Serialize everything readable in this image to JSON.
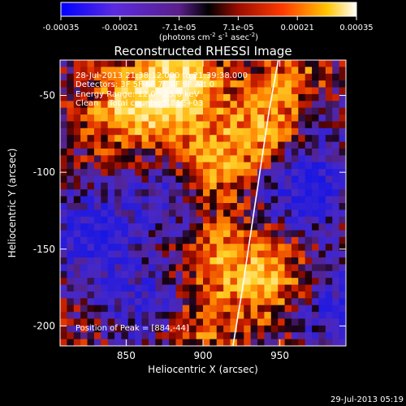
{
  "colorbar": {
    "tick_labels": [
      "-0.00035",
      "-0.00021",
      "-7.1e-05",
      "7.1e-05",
      "0.00021",
      "0.00035"
    ],
    "units_main": "(photons cm",
    "units_exp1": "-2",
    "units_mid": " s",
    "units_exp2": "-1",
    "units_tail": " asec",
    "units_exp3": "-2",
    "units_close": ")",
    "range": [
      -0.00035,
      0.00035
    ],
    "colormap": "blue-purple-red-yellow-white"
  },
  "chart_data": {
    "type": "heatmap",
    "title": "Reconstructed RHESSI Image",
    "xlabel": "Heliocentric X (arcsec)",
    "ylabel": "Heliocentric Y (arcsec)",
    "xlim": [
      807,
      993
    ],
    "ylim": [
      -213,
      -27
    ],
    "x_ticks": [
      850,
      900,
      950
    ],
    "y_ticks": [
      -50,
      -100,
      -150,
      -200
    ],
    "info_lines": [
      "28-Jul-2013 21:38:12.000 to 21:39:38.000",
      "Detectors: 3F 5F 6F 7F 8F 9F Att 0",
      "Energy Range: 12.0 - 25.0 keV",
      "Clean    Total counts: 5.81E+03"
    ],
    "peak_text": "Position of Peak = [884,-44]",
    "peak_position": [
      884,
      -44
    ],
    "limb_line": [
      [
        919.5,
        -213
      ],
      [
        925,
        -180
      ],
      [
        931,
        -140
      ],
      [
        937,
        -100
      ],
      [
        943,
        -60
      ],
      [
        949,
        -27
      ]
    ],
    "grid_size": 42,
    "hotspots": [
      {
        "x": 884,
        "y": -44,
        "amp": 1.6
      },
      {
        "x": 852,
        "y": -60,
        "amp": 1.1
      },
      {
        "x": 905,
        "y": -95,
        "amp": 1.0
      },
      {
        "x": 940,
        "y": -70,
        "amp": 0.9
      },
      {
        "x": 908,
        "y": -155,
        "amp": 0.8
      },
      {
        "x": 945,
        "y": -170,
        "amp": 1.0
      },
      {
        "x": 960,
        "y": -40,
        "amp": 0.7
      },
      {
        "x": 900,
        "y": -200,
        "amp": 0.6
      }
    ],
    "coldspots": [
      {
        "x": 830,
        "y": -140,
        "amp": 1.1
      },
      {
        "x": 968,
        "y": -110,
        "amp": 1.2
      },
      {
        "x": 880,
        "y": -115,
        "amp": 0.7
      },
      {
        "x": 865,
        "y": -185,
        "amp": 0.8
      },
      {
        "x": 985,
        "y": -185,
        "amp": 0.9
      },
      {
        "x": 975,
        "y": -60,
        "amp": 0.4
      }
    ]
  },
  "footer": {
    "timestamp": "29-Jul-2013 05:19"
  }
}
